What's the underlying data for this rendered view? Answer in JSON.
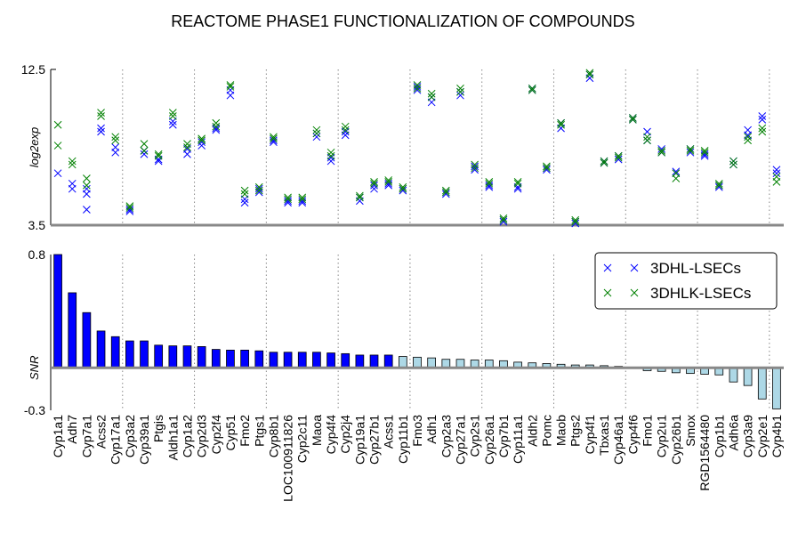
{
  "chart_data": {
    "type": "scatter+bar",
    "title": "REACTOME PHASE1 FUNCTIONALIZATION OF COMPOUNDS",
    "categories": [
      "Cyp1a1",
      "Adh7",
      "Cyp7a1",
      "Acss2",
      "Cyp17a1",
      "Cyp3a2",
      "Cyp39a1",
      "Ptgis",
      "Aldh1a1",
      "Cyp1a2",
      "Cyp2d3",
      "Cyp2f4",
      "Cyp51",
      "Fmo2",
      "Ptgs1",
      "Cyp8b1",
      "LOC100911826",
      "Cyp2c11",
      "Maoa",
      "Cyp4f4",
      "Cyp2j4",
      "Cyp19a1",
      "Cyp27b1",
      "Acss1",
      "Cyp11b1",
      "Fmo3",
      "Adh1",
      "Cyp2a3",
      "Cyp27a1",
      "Cyp2s1",
      "Cyp26a1",
      "Cyp7b1",
      "Cyp11a1",
      "Aldh2",
      "Pomc",
      "Maob",
      "Ptgs2",
      "Cyp4f1",
      "Tbxas1",
      "Cyp46a1",
      "Cyp4f6",
      "Fmo1",
      "Cyp2u1",
      "Cyp26b1",
      "Smox",
      "RGD1564480",
      "Cyp1b1",
      "Adh6a",
      "Cyp3a9",
      "Cyp2e1",
      "Cyp4b1"
    ],
    "group_separators_after": [
      4,
      9,
      14,
      19,
      24,
      29,
      34,
      39,
      44,
      49
    ],
    "top_panel": {
      "ylabel": "log2exp",
      "ylim": [
        3.5,
        12.5
      ],
      "yticks": [
        "3.5",
        "12.5"
      ],
      "series": [
        {
          "name": "3DHL-LSECs",
          "color": "#0000ff",
          "points": [
            [
              0,
              6.5
            ],
            [
              1,
              5.6
            ],
            [
              1,
              5.9
            ],
            [
              2,
              5.6
            ],
            [
              2,
              5.3
            ],
            [
              2,
              4.4
            ],
            [
              3,
              9.1
            ],
            [
              3,
              8.9
            ],
            [
              4,
              8.0
            ],
            [
              4,
              7.7
            ],
            [
              5,
              4.4
            ],
            [
              5,
              4.3
            ],
            [
              6,
              7.6
            ],
            [
              6,
              7.8
            ],
            [
              7,
              7.3
            ],
            [
              7,
              7.2
            ],
            [
              8,
              9.3
            ],
            [
              8,
              9.5
            ],
            [
              9,
              7.9
            ],
            [
              9,
              7.6
            ],
            [
              10,
              8.1
            ],
            [
              10,
              8.3
            ],
            [
              11,
              9.1
            ],
            [
              11,
              9.0
            ],
            [
              12,
              11.0
            ],
            [
              12,
              11.3
            ],
            [
              13,
              5.0
            ],
            [
              13,
              4.8
            ],
            [
              14,
              5.6
            ],
            [
              14,
              5.4
            ],
            [
              15,
              8.3
            ],
            [
              15,
              8.4
            ],
            [
              16,
              4.8
            ],
            [
              16,
              4.9
            ],
            [
              17,
              4.8
            ],
            [
              17,
              4.9
            ],
            [
              18,
              8.6
            ],
            [
              18,
              8.8
            ],
            [
              19,
              7.2
            ],
            [
              19,
              7.4
            ],
            [
              20,
              8.7
            ],
            [
              20,
              8.9
            ],
            [
              21,
              4.9
            ],
            [
              21,
              5.1
            ],
            [
              22,
              5.6
            ],
            [
              22,
              5.8
            ],
            [
              23,
              5.8
            ],
            [
              23,
              5.9
            ],
            [
              24,
              5.5
            ],
            [
              24,
              5.6
            ],
            [
              25,
              11.3
            ],
            [
              25,
              11.5
            ],
            [
              26,
              10.6
            ],
            [
              26,
              10.9
            ],
            [
              27,
              5.3
            ],
            [
              27,
              5.4
            ],
            [
              28,
              11.0
            ],
            [
              28,
              11.2
            ],
            [
              29,
              6.7
            ],
            [
              29,
              6.9
            ],
            [
              30,
              5.7
            ],
            [
              30,
              5.8
            ],
            [
              31,
              3.7
            ],
            [
              31,
              3.8
            ],
            [
              32,
              5.7
            ],
            [
              32,
              5.6
            ],
            [
              33,
              11.3
            ],
            [
              33,
              11.4
            ],
            [
              34,
              6.7
            ],
            [
              34,
              6.8
            ],
            [
              35,
              9.1
            ],
            [
              35,
              9.4
            ],
            [
              36,
              3.6
            ],
            [
              36,
              3.7
            ],
            [
              37,
              12.0
            ],
            [
              37,
              12.2
            ],
            [
              38,
              7.1
            ],
            [
              38,
              7.2
            ],
            [
              39,
              7.3
            ],
            [
              39,
              7.5
            ],
            [
              40,
              9.6
            ],
            [
              40,
              9.7
            ],
            [
              41,
              8.4
            ],
            [
              41,
              8.9
            ],
            [
              42,
              7.7
            ],
            [
              42,
              7.9
            ],
            [
              43,
              6.6
            ],
            [
              43,
              6.5
            ],
            [
              44,
              7.7
            ],
            [
              44,
              7.9
            ],
            [
              45,
              7.5
            ],
            [
              45,
              7.6
            ],
            [
              46,
              5.7
            ],
            [
              46,
              5.8
            ],
            [
              47,
              7.0
            ],
            [
              47,
              7.2
            ],
            [
              48,
              8.7
            ],
            [
              48,
              9.0
            ],
            [
              49,
              9.6
            ],
            [
              49,
              9.8
            ],
            [
              50,
              6.7
            ],
            [
              50,
              6.5
            ]
          ]
        },
        {
          "name": "3DHLK-LSECs",
          "color": "#008000",
          "points": [
            [
              0,
              9.3
            ],
            [
              0,
              8.1
            ],
            [
              1,
              7.0
            ],
            [
              1,
              7.2
            ],
            [
              2,
              6.2
            ],
            [
              2,
              5.8
            ],
            [
              3,
              9.8
            ],
            [
              3,
              10.0
            ],
            [
              4,
              8.6
            ],
            [
              4,
              8.4
            ],
            [
              5,
              4.6
            ],
            [
              5,
              4.5
            ],
            [
              6,
              8.2
            ],
            [
              6,
              7.8
            ],
            [
              7,
              7.6
            ],
            [
              7,
              7.5
            ],
            [
              8,
              9.8
            ],
            [
              8,
              10.0
            ],
            [
              9,
              8.0
            ],
            [
              9,
              8.2
            ],
            [
              10,
              8.4
            ],
            [
              10,
              8.5
            ],
            [
              11,
              9.4
            ],
            [
              11,
              9.2
            ],
            [
              12,
              11.6
            ],
            [
              12,
              11.5
            ],
            [
              13,
              5.5
            ],
            [
              13,
              5.3
            ],
            [
              14,
              5.7
            ],
            [
              14,
              5.5
            ],
            [
              15,
              8.6
            ],
            [
              15,
              8.5
            ],
            [
              16,
              5.1
            ],
            [
              16,
              5.0
            ],
            [
              17,
              5.1
            ],
            [
              17,
              5.0
            ],
            [
              18,
              9.0
            ],
            [
              18,
              8.8
            ],
            [
              19,
              7.7
            ],
            [
              19,
              7.5
            ],
            [
              20,
              9.2
            ],
            [
              20,
              9.0
            ],
            [
              21,
              5.1
            ],
            [
              21,
              5.2
            ],
            [
              22,
              5.9
            ],
            [
              22,
              6.0
            ],
            [
              23,
              6.1
            ],
            [
              23,
              6.0
            ],
            [
              24,
              5.6
            ],
            [
              24,
              5.7
            ],
            [
              25,
              11.6
            ],
            [
              25,
              11.4
            ],
            [
              26,
              10.9
            ],
            [
              26,
              11.1
            ],
            [
              27,
              5.4
            ],
            [
              27,
              5.5
            ],
            [
              28,
              11.2
            ],
            [
              28,
              11.4
            ],
            [
              29,
              7.0
            ],
            [
              29,
              6.8
            ],
            [
              30,
              6.0
            ],
            [
              30,
              5.9
            ],
            [
              31,
              3.8
            ],
            [
              31,
              3.9
            ],
            [
              32,
              6.0
            ],
            [
              32,
              5.9
            ],
            [
              33,
              11.3
            ],
            [
              33,
              11.4
            ],
            [
              34,
              6.9
            ],
            [
              34,
              6.8
            ],
            [
              35,
              9.4
            ],
            [
              35,
              9.3
            ],
            [
              36,
              3.7
            ],
            [
              36,
              3.8
            ],
            [
              37,
              12.3
            ],
            [
              37,
              12.2
            ],
            [
              38,
              7.1
            ],
            [
              38,
              7.2
            ],
            [
              39,
              7.4
            ],
            [
              39,
              7.5
            ],
            [
              40,
              9.6
            ],
            [
              40,
              9.7
            ],
            [
              41,
              8.6
            ],
            [
              41,
              8.4
            ],
            [
              42,
              7.8
            ],
            [
              42,
              7.7
            ],
            [
              43,
              6.2
            ],
            [
              43,
              6.5
            ],
            [
              44,
              7.9
            ],
            [
              44,
              7.8
            ],
            [
              45,
              7.8
            ],
            [
              45,
              7.7
            ],
            [
              46,
              5.9
            ],
            [
              46,
              5.8
            ],
            [
              47,
              7.2
            ],
            [
              47,
              7.0
            ],
            [
              48,
              8.4
            ],
            [
              48,
              8.6
            ],
            [
              49,
              8.9
            ],
            [
              49,
              9.1
            ],
            [
              50,
              6.0
            ],
            [
              50,
              6.3
            ]
          ]
        }
      ]
    },
    "bottom_panel": {
      "ylabel": "SNR",
      "ylim": [
        -0.3,
        0.8
      ],
      "yticks": [
        "-0.3",
        "0.8"
      ],
      "values": [
        0.8,
        0.53,
        0.39,
        0.26,
        0.22,
        0.19,
        0.19,
        0.16,
        0.155,
        0.155,
        0.15,
        0.13,
        0.125,
        0.125,
        0.12,
        0.11,
        0.11,
        0.11,
        0.11,
        0.105,
        0.1,
        0.09,
        0.09,
        0.09,
        0.08,
        0.075,
        0.07,
        0.06,
        0.06,
        0.055,
        0.055,
        0.05,
        0.04,
        0.035,
        0.03,
        0.025,
        0.02,
        0.02,
        0.015,
        0.01,
        -0.005,
        -0.02,
        -0.025,
        -0.035,
        -0.04,
        -0.045,
        -0.05,
        -0.1,
        -0.125,
        -0.22,
        -0.29
      ],
      "highlight_count": 24,
      "colors": {
        "highlight": "#0000ff",
        "rest": "#add8e6",
        "edge": "#000000"
      }
    },
    "legend": {
      "placement": "top-right of bottom panel",
      "entries": [
        {
          "label": "3DHL-LSECs",
          "color": "#0000ff"
        },
        {
          "label": "3DHLK-LSECs",
          "color": "#008000"
        }
      ]
    }
  }
}
